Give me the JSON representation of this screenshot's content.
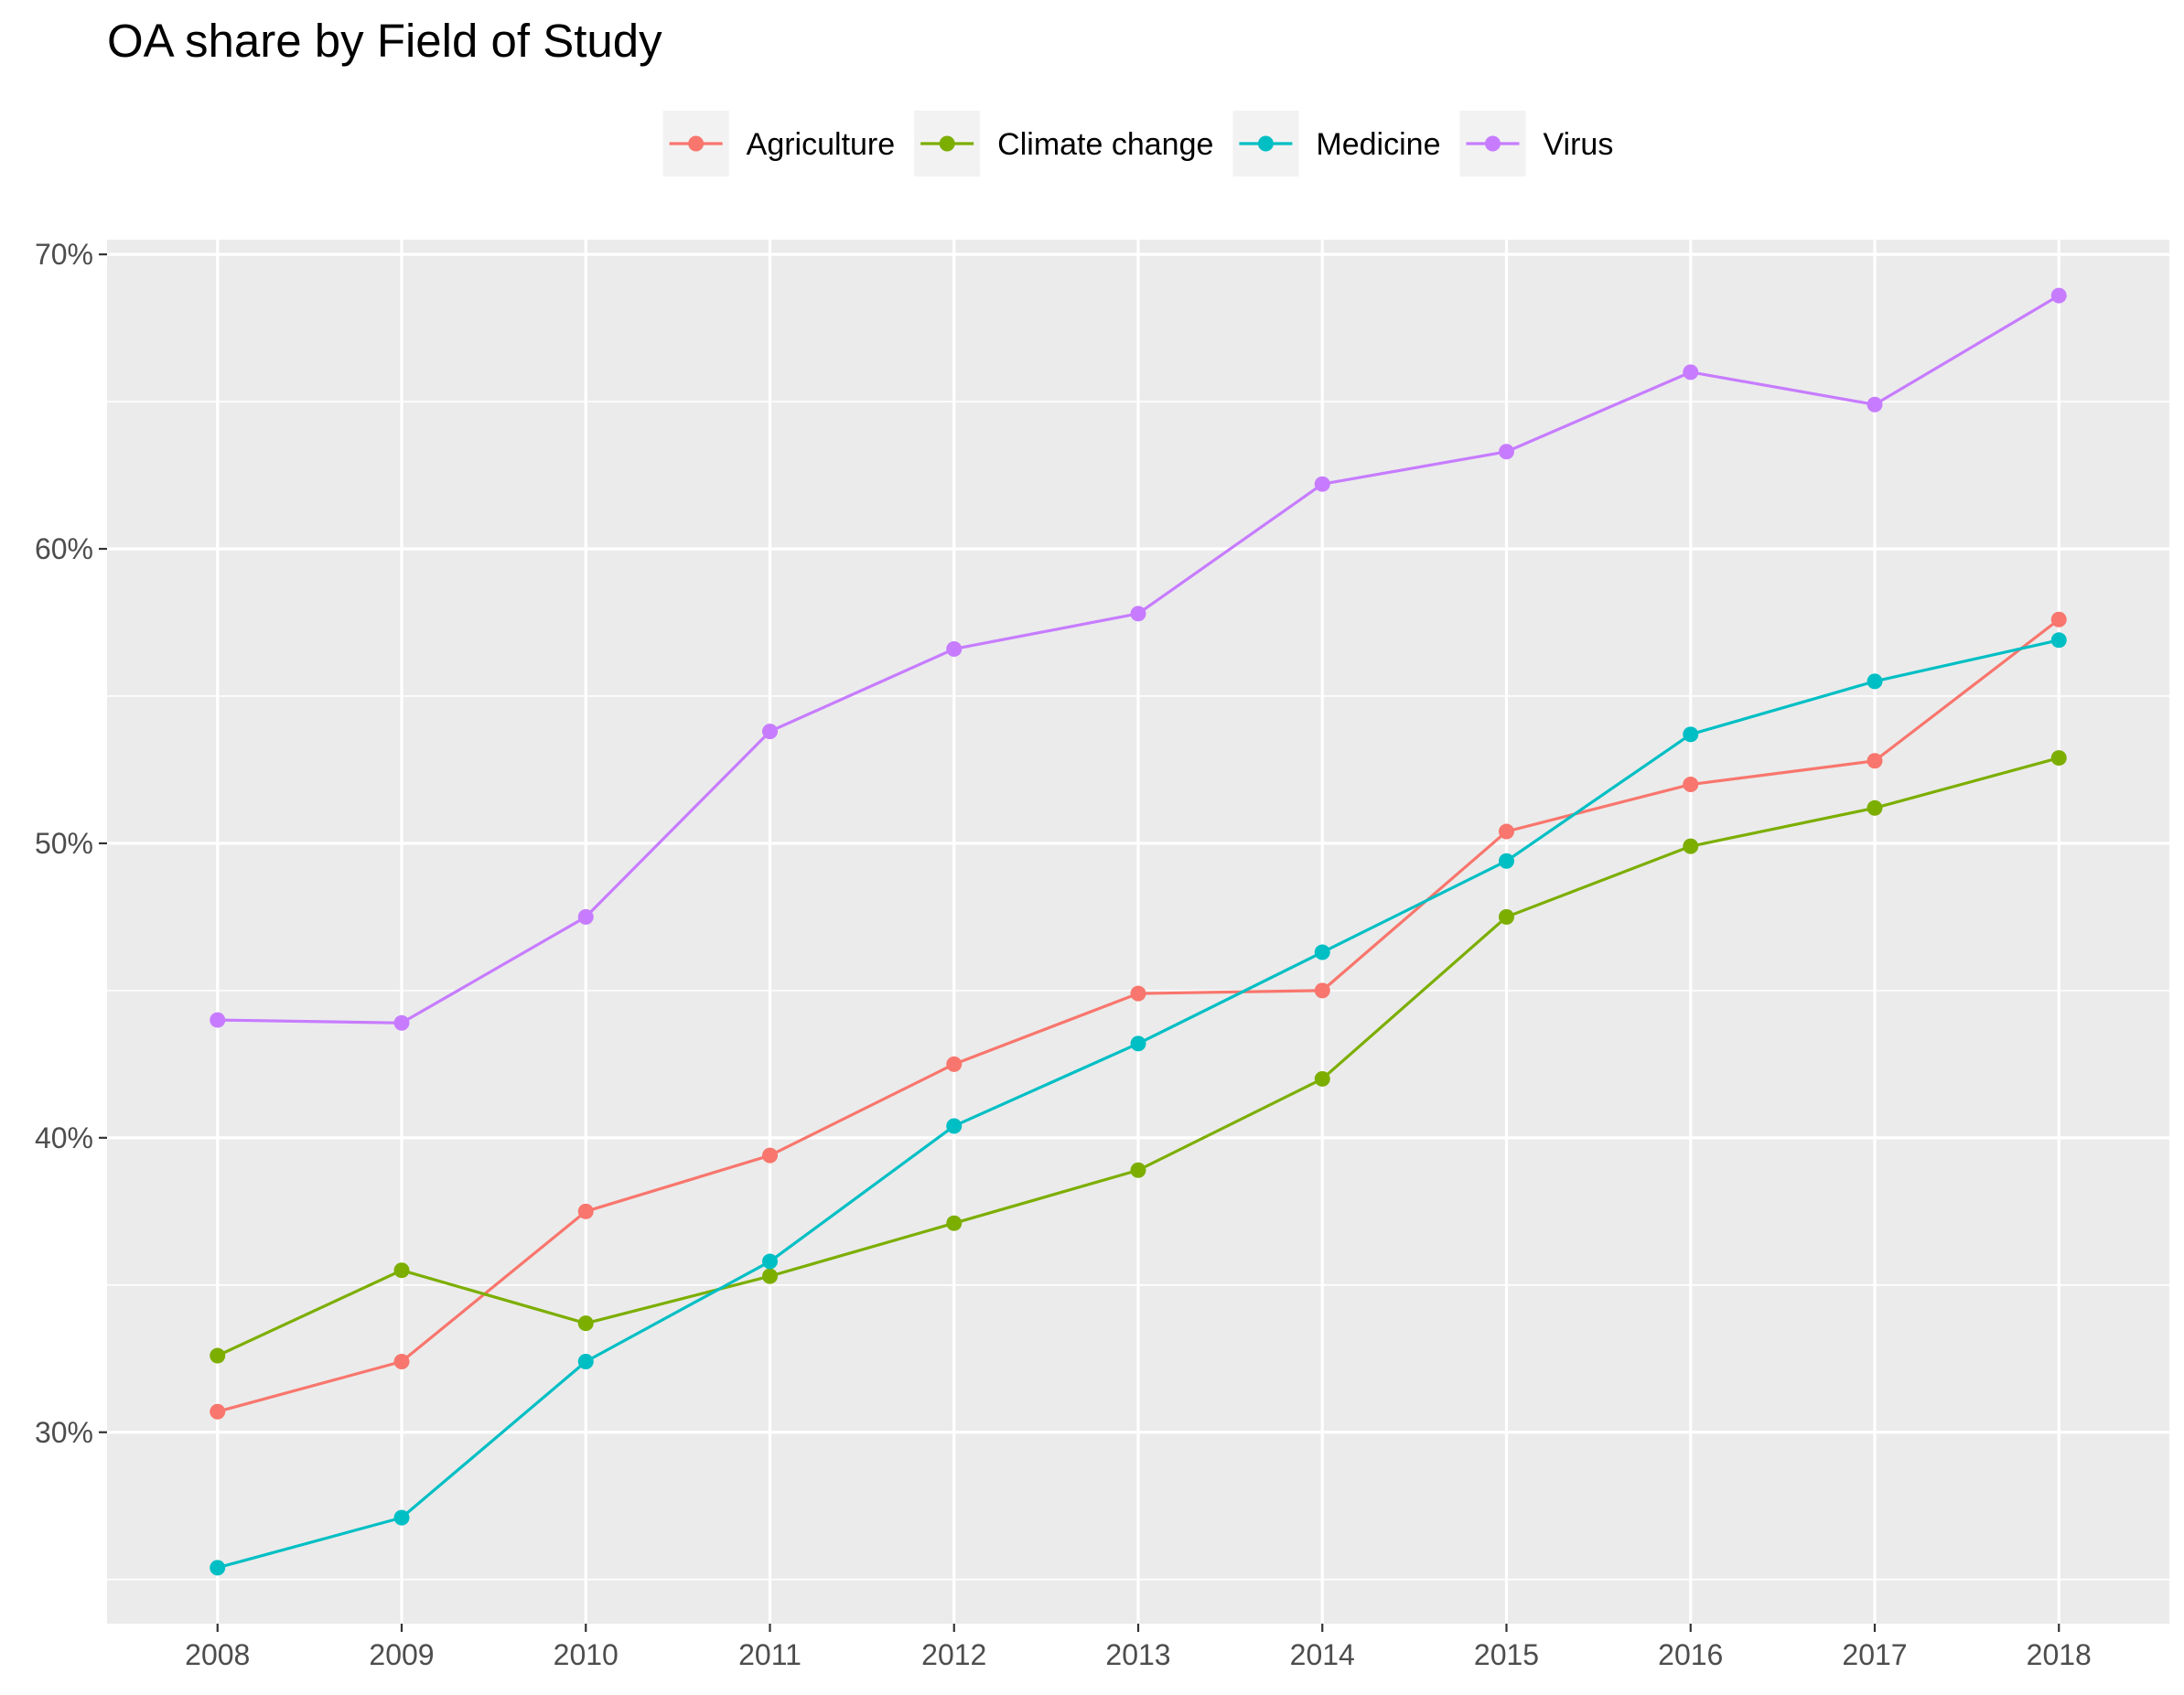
{
  "chart_data": {
    "type": "line",
    "title": "OA share by Field of Study",
    "xlabel": "",
    "ylabel": "",
    "x": [
      2008,
      2009,
      2010,
      2011,
      2012,
      2013,
      2014,
      2015,
      2016,
      2017,
      2018
    ],
    "x_tick_labels": [
      "2008",
      "2009",
      "2010",
      "2011",
      "2012",
      "2013",
      "2014",
      "2015",
      "2016",
      "2017",
      "2018"
    ],
    "ylim": [
      0.235,
      0.705
    ],
    "y_ticks": [
      0.3,
      0.4,
      0.5,
      0.6,
      0.7
    ],
    "y_tick_labels": [
      "30%",
      "40%",
      "50%",
      "60%",
      "70%"
    ],
    "y_format": "percent",
    "grid": true,
    "legend_position": "top",
    "series": [
      {
        "name": "Agriculture",
        "color": "#F8766D",
        "values": [
          0.307,
          0.324,
          0.375,
          0.394,
          0.425,
          0.449,
          0.45,
          0.504,
          0.52,
          0.528,
          0.576
        ]
      },
      {
        "name": "Climate change",
        "color": "#7CAE00",
        "values": [
          0.326,
          0.355,
          0.337,
          0.353,
          0.371,
          0.389,
          0.42,
          0.475,
          0.499,
          0.512,
          0.529
        ]
      },
      {
        "name": "Medicine",
        "color": "#00BFC4",
        "values": [
          0.254,
          0.271,
          0.324,
          0.358,
          0.404,
          0.432,
          0.463,
          0.494,
          0.537,
          0.555,
          0.569
        ]
      },
      {
        "name": "Virus",
        "color": "#C77CFF",
        "values": [
          0.44,
          0.439,
          0.475,
          0.538,
          0.566,
          0.578,
          0.622,
          0.633,
          0.66,
          0.649,
          0.686
        ]
      }
    ]
  }
}
